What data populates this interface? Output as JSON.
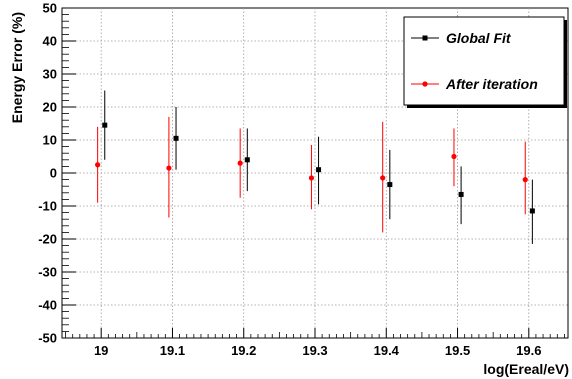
{
  "chart_data": {
    "type": "scatter",
    "xlabel": "log(Ereal/eV)",
    "ylabel": "Energy Error (%)",
    "xlim": [
      18.945,
      19.655
    ],
    "ylim": [
      -50,
      50
    ],
    "x_ticks": [
      19,
      19.1,
      19.2,
      19.3,
      19.4,
      19.5,
      19.6
    ],
    "x_tick_labels": [
      "19",
      "19.1",
      "19.2",
      "19.3",
      "19.4",
      "19.5",
      "19.6"
    ],
    "y_ticks": [
      -50,
      -40,
      -30,
      -20,
      -10,
      0,
      10,
      20,
      30,
      40,
      50
    ],
    "y_tick_labels": [
      "-50",
      "-40",
      "-30",
      "-20",
      "-10",
      "0",
      "10",
      "20",
      "30",
      "40",
      "50"
    ],
    "grid": true,
    "legend_position": "top-right",
    "series": [
      {
        "name": "Global Fit",
        "color": "#000000",
        "marker": "square",
        "x": [
          19.005,
          19.105,
          19.205,
          19.305,
          19.405,
          19.505,
          19.605
        ],
        "y": [
          14.5,
          10.5,
          4.0,
          1.0,
          -3.5,
          -6.5,
          -11.5
        ],
        "y_low": [
          4.0,
          1.0,
          -5.5,
          -9.5,
          -14.0,
          -15.5,
          -21.5
        ],
        "y_high": [
          25.0,
          20.0,
          13.5,
          11.0,
          7.0,
          2.0,
          -2.0
        ]
      },
      {
        "name": "After iteration",
        "color": "#ff0000",
        "marker": "circle",
        "x": [
          18.995,
          19.095,
          19.195,
          19.295,
          19.395,
          19.495,
          19.595
        ],
        "y": [
          2.5,
          1.5,
          3.0,
          -1.5,
          -1.5,
          5.0,
          -2.0
        ],
        "y_low": [
          -9.0,
          -13.5,
          -7.5,
          -11.0,
          -18.0,
          -4.0,
          -12.5
        ],
        "y_high": [
          14.0,
          17.0,
          13.5,
          8.5,
          15.5,
          13.5,
          9.5
        ]
      }
    ]
  }
}
